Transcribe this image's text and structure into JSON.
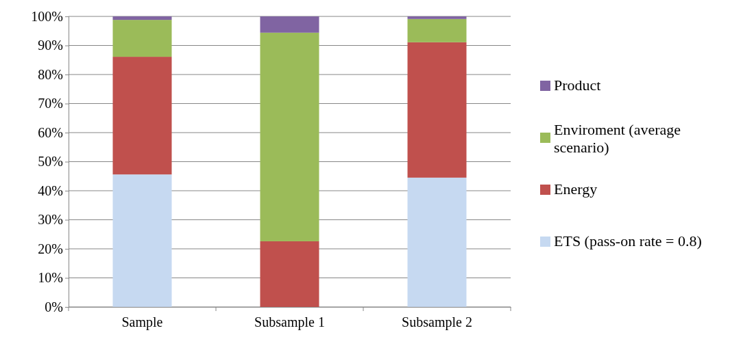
{
  "chart_data": {
    "type": "bar",
    "stacked": true,
    "categories": [
      "Sample",
      "Subsample 1",
      "Subsample 2"
    ],
    "series": [
      {
        "name": "ETS (pass-on rate = 0.8)",
        "color": "#c6d9f1",
        "values": [
          45.6,
          0,
          44.5
        ]
      },
      {
        "name": "Energy",
        "color": "#c0504d",
        "values": [
          40.5,
          22.6,
          46.6
        ]
      },
      {
        "name": "Enviroment (average scenario)",
        "color": "#9bbb59",
        "values": [
          12.7,
          71.8,
          8.0
        ]
      },
      {
        "name": "Product",
        "color": "#8064a2",
        "values": [
          1.2,
          5.6,
          0.9
        ]
      }
    ],
    "ylim": [
      0,
      100
    ],
    "yticks": [
      {
        "value": 0,
        "label": "0%"
      },
      {
        "value": 10,
        "label": "10%"
      },
      {
        "value": 20,
        "label": "20%"
      },
      {
        "value": 30,
        "label": "30%"
      },
      {
        "value": 40,
        "label": "40%"
      },
      {
        "value": 50,
        "label": "50%"
      },
      {
        "value": 60,
        "label": "60%"
      },
      {
        "value": 70,
        "label": "70%"
      },
      {
        "value": 80,
        "label": "80%"
      },
      {
        "value": 90,
        "label": "90%"
      },
      {
        "value": 100,
        "label": "100%"
      }
    ],
    "grid": "y",
    "legend": "right"
  }
}
